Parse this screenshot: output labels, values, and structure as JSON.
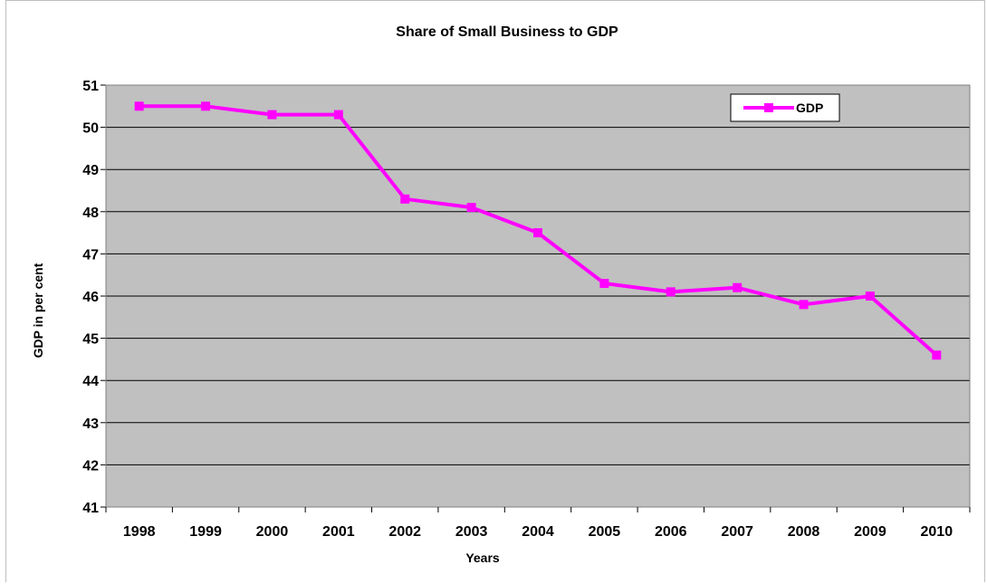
{
  "chart_data": {
    "type": "line",
    "title": "Share of Small Business to GDP",
    "xlabel": "Years",
    "ylabel": "GDP in per cent",
    "categories": [
      "1998",
      "1999",
      "2000",
      "2001",
      "2002",
      "2003",
      "2004",
      "2005",
      "2006",
      "2007",
      "2008",
      "2009",
      "2010"
    ],
    "series": [
      {
        "name": "GDP",
        "values": [
          50.5,
          50.5,
          50.3,
          50.3,
          48.3,
          48.1,
          47.5,
          46.3,
          46.1,
          46.2,
          45.8,
          46.0,
          44.6
        ],
        "color": "#ff00ff"
      }
    ],
    "ylim": [
      41,
      51
    ],
    "yticks": [
      "41",
      "42",
      "43",
      "44",
      "45",
      "46",
      "47",
      "48",
      "49",
      "50",
      "51"
    ],
    "grid": true,
    "legend": "top-right",
    "plot_background": "#c0c0c0"
  }
}
